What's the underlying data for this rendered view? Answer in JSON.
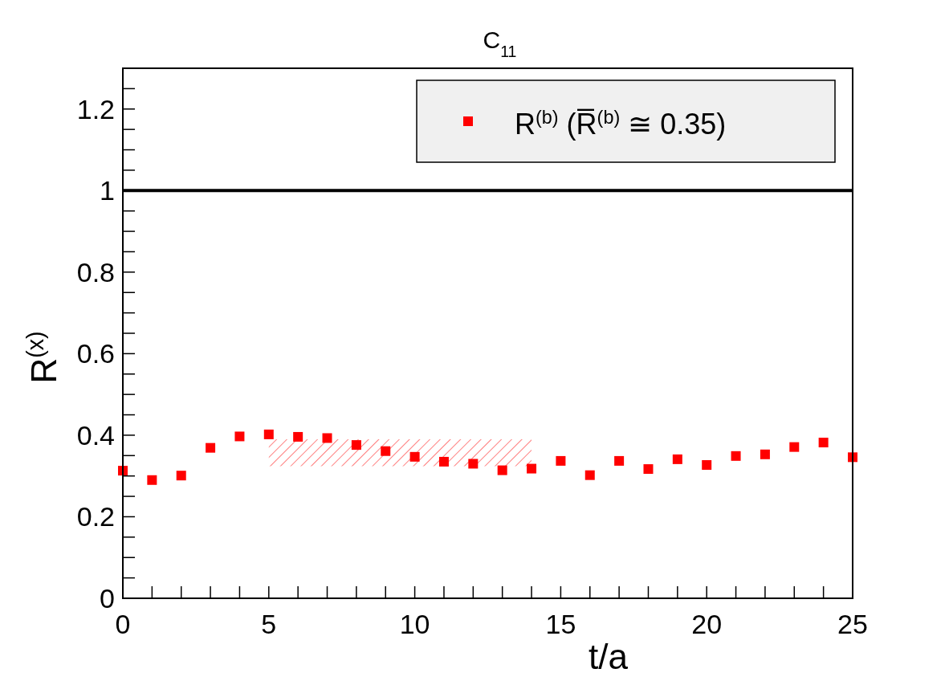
{
  "chart_data": {
    "type": "scatter",
    "title": "C$_{11}$",
    "xlabel": "t/a",
    "ylabel": "R$^{(x)}$",
    "xlim": [
      0,
      25
    ],
    "ylim": [
      0,
      1.3
    ],
    "xticks": [
      0,
      {
        "value": 1,
        "label": null
      },
      {
        "value": 2,
        "label": null
      },
      {
        "value": 3,
        "label": null
      },
      {
        "value": 4,
        "label": null
      },
      5,
      {
        "value": 6,
        "label": null
      },
      {
        "value": 7,
        "label": null
      },
      {
        "value": 8,
        "label": null
      },
      {
        "value": 9,
        "label": null
      },
      10,
      {
        "value": 11,
        "label": null
      },
      {
        "value": 12,
        "label": null
      },
      {
        "value": 13,
        "label": null
      },
      {
        "value": 14,
        "label": null
      },
      15,
      {
        "value": 16,
        "label": null
      },
      {
        "value": 17,
        "label": null
      },
      {
        "value": 18,
        "label": null
      },
      {
        "value": 19,
        "label": null
      },
      20,
      {
        "value": 21,
        "label": null
      },
      {
        "value": 22,
        "label": null
      },
      {
        "value": 23,
        "label": null
      },
      {
        "value": 24,
        "label": null
      },
      25
    ],
    "yticks": [
      0,
      {
        "value": 0.05,
        "label": null
      },
      {
        "value": 0.1,
        "label": null
      },
      {
        "value": 0.15,
        "label": null
      },
      0.2,
      {
        "value": 0.25,
        "label": null
      },
      {
        "value": 0.3,
        "label": null
      },
      {
        "value": 0.35,
        "label": null
      },
      0.4,
      {
        "value": 0.45,
        "label": null
      },
      {
        "value": 0.5,
        "label": null
      },
      {
        "value": 0.55,
        "label": null
      },
      0.6,
      {
        "value": 0.65,
        "label": null
      },
      {
        "value": 0.7,
        "label": null
      },
      {
        "value": 0.75,
        "label": null
      },
      0.8,
      {
        "value": 0.85,
        "label": null
      },
      {
        "value": 0.9,
        "label": null
      },
      {
        "value": 0.95,
        "label": null
      },
      1,
      {
        "value": 1.05,
        "label": null
      },
      {
        "value": 1.1,
        "label": null
      },
      {
        "value": 1.15,
        "label": null
      },
      1.2,
      {
        "value": 1.25,
        "label": null
      }
    ],
    "marker": "square",
    "legend": "top right",
    "grid": false,
    "series": [
      {
        "name": "R$^{(b)}$  (R̅$^{(b)}$ ≅ 0.35)",
        "color": "#ff0000",
        "x": [
          0,
          1,
          2,
          3,
          4,
          5,
          6,
          7,
          8,
          9,
          10,
          11,
          12,
          13,
          14,
          15,
          16,
          17,
          18,
          19,
          20,
          21,
          22,
          23,
          24,
          25
        ],
        "values": [
          0.313,
          0.29,
          0.301,
          0.369,
          0.397,
          0.402,
          0.396,
          0.393,
          0.376,
          0.361,
          0.347,
          0.335,
          0.33,
          0.314,
          0.318,
          0.337,
          0.302,
          0.337,
          0.317,
          0.341,
          0.327,
          0.349,
          0.353,
          0.371,
          0.382,
          0.346
        ]
      },
      {
        "type": "area",
        "color": "#ff0000",
        "x": [
          5,
          14
        ],
        "values": [
          null,
          null
        ],
        "lower": [
          0.324,
          0.324
        ],
        "upper": [
          0.39,
          0.39
        ]
      }
    ],
    "ref_lines": [
      {
        "axis": "y",
        "value": 1,
        "color": "#000000",
        "line_style": "solid"
      }
    ]
  }
}
